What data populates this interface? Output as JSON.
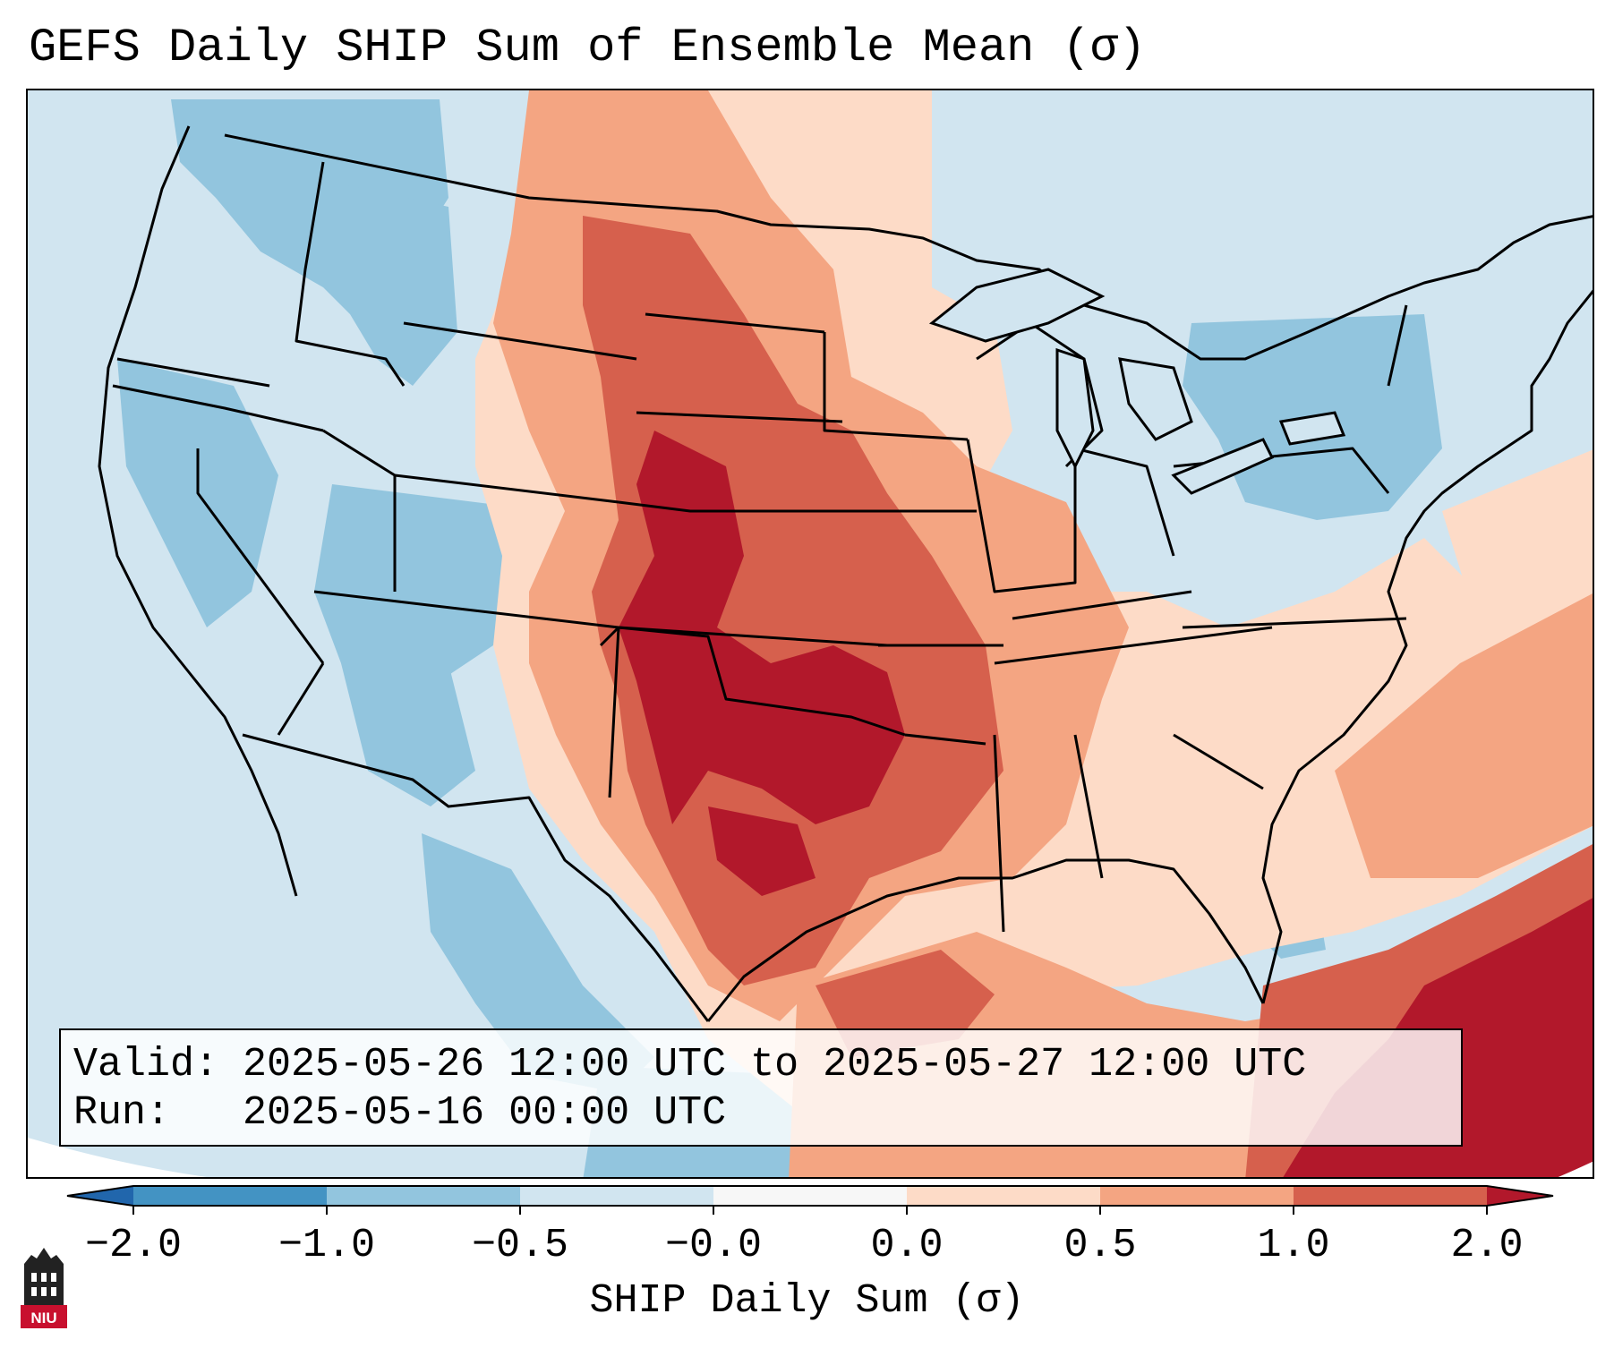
{
  "title": "GEFS Daily SHIP Sum of Ensemble Mean (σ)",
  "info": {
    "valid_line": "Valid: 2025-05-26 12:00 UTC to 2025-05-27 12:00 UTC",
    "run_line": "Run:   2025-05-16 00:00 UTC"
  },
  "colorbar": {
    "label": "SHIP Daily Sum (σ)",
    "tick_labels": [
      "−2.0",
      "−1.0",
      "−0.5",
      "−0.0",
      "0.0",
      "0.5",
      "1.0",
      "2.0"
    ],
    "bins": [
      {
        "range": "< -2.0",
        "color": "#2166ac"
      },
      {
        "range": "-2.0 to -1.0",
        "color": "#4393c3"
      },
      {
        "range": "-1.0 to -0.5",
        "color": "#92c5de"
      },
      {
        "range": "-0.5 to -0.0",
        "color": "#d1e5f0"
      },
      {
        "range": "-0.0 to 0.0",
        "color": "#f7f7f7"
      },
      {
        "range": "0.0 to 0.5",
        "color": "#fddbc7"
      },
      {
        "range": "0.5 to 1.0",
        "color": "#f4a582"
      },
      {
        "range": "1.0 to 2.0",
        "color": "#d6604d"
      },
      {
        "range": "> 2.0",
        "color": "#b2182b"
      }
    ],
    "extend": "both"
  },
  "logo": {
    "text": "NIU",
    "color": "#c8102e"
  },
  "map": {
    "region": "Continental United States",
    "projection": "Lambert Conformal",
    "background_color": "#d1e5f0"
  }
}
